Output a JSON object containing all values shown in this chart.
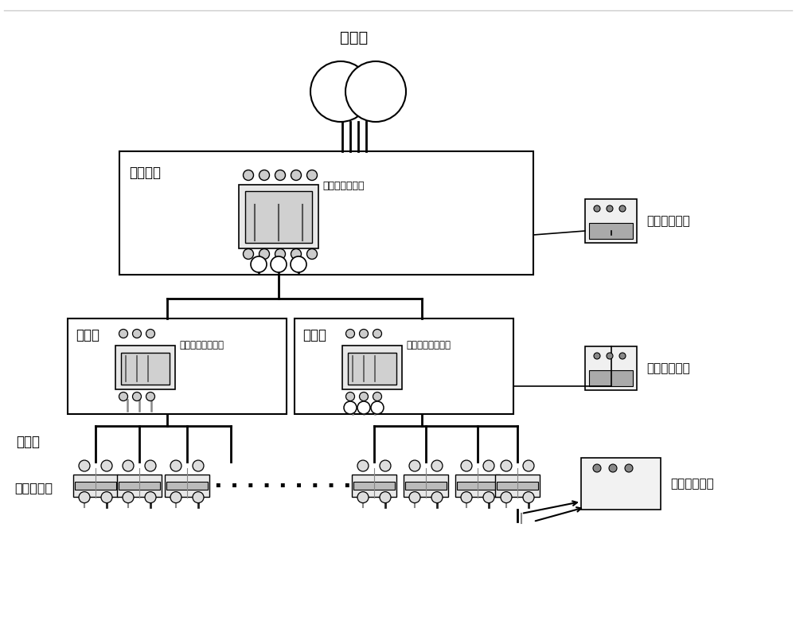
{
  "bg_color": "#ffffff",
  "text_color": "#000000",
  "line_color": "#000000",
  "title_transformer": "变压器",
  "label_taiquxiangbian": "台区箱变",
  "label_taiqumolding": "台区塑壳断路器",
  "label_fenzhixiang": "分支箱",
  "label_fenzhimolding": "分支箱塑壳断路器",
  "label_taiqudecoder": "台区解码设备",
  "label_taiquemitter": "台区发码设备",
  "label_user_side": "用户侧",
  "label_meter_breaker": "表后断路器",
  "dots": "· · · · · · · · ·"
}
